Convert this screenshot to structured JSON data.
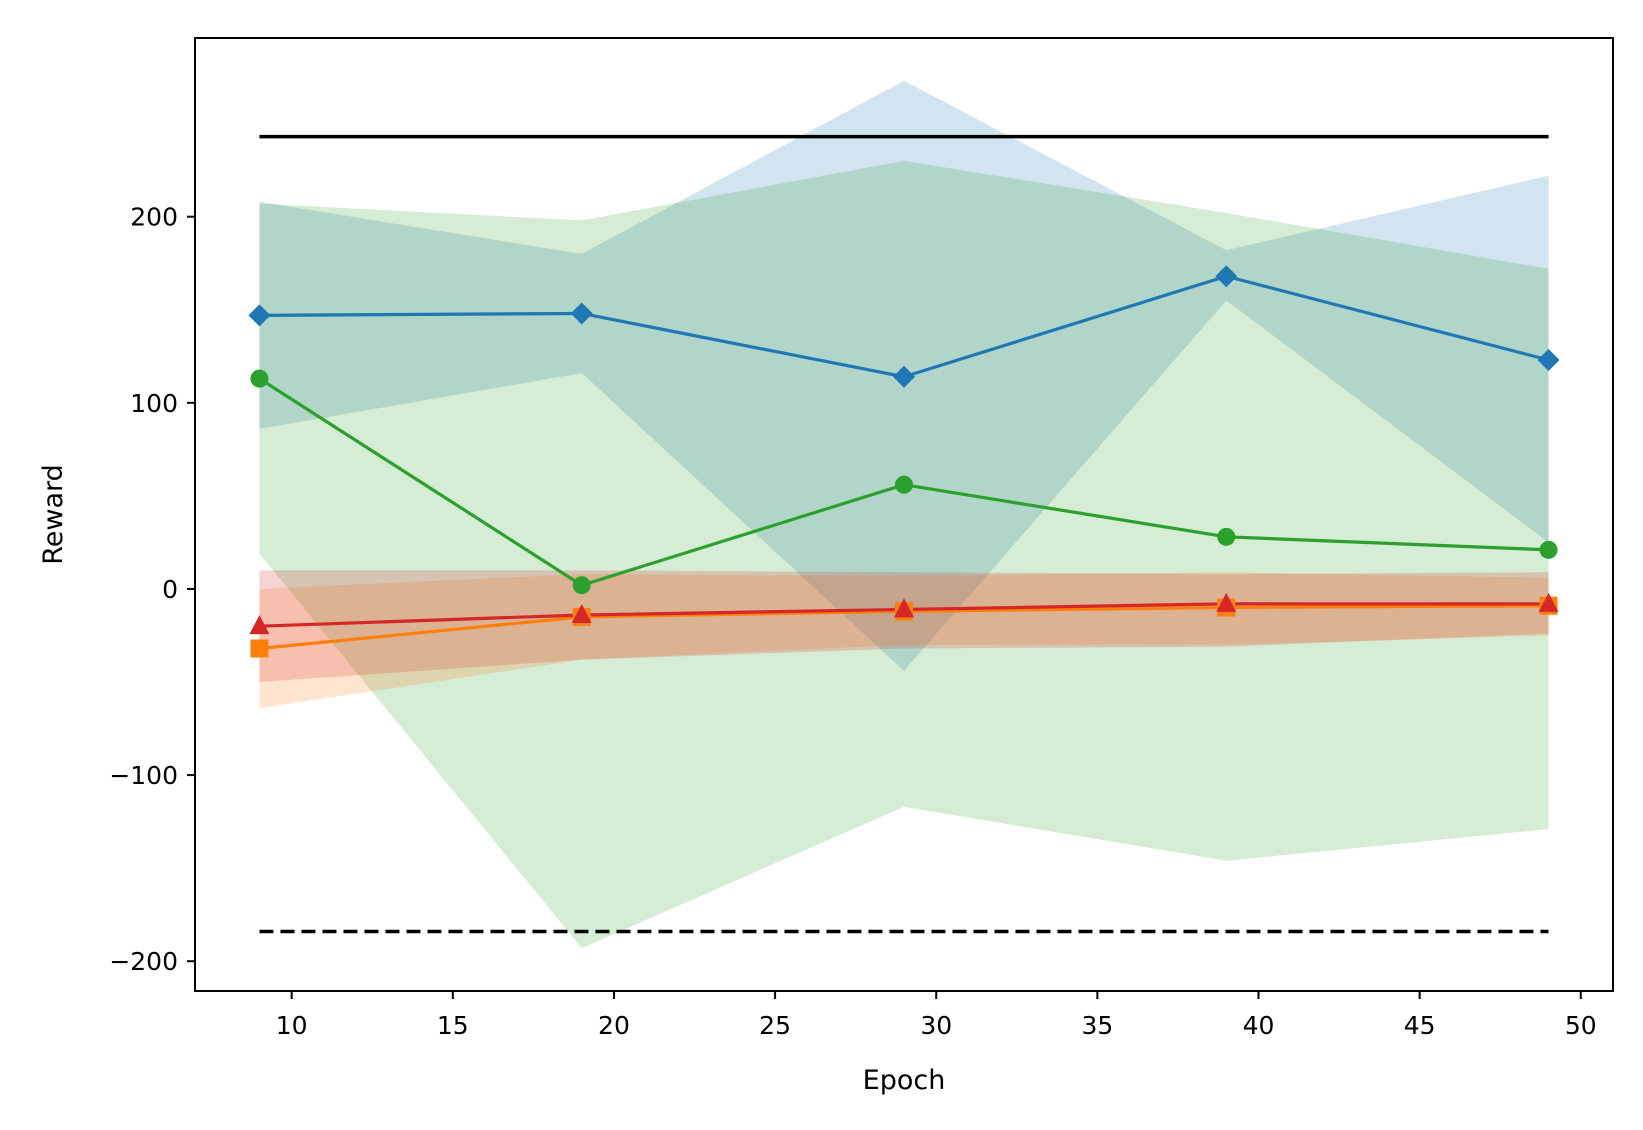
{
  "chart_data": {
    "type": "line",
    "title": "",
    "xlabel": "Epoch",
    "ylabel": "Reward",
    "xlim": [
      7,
      51
    ],
    "ylim": [
      -216,
      296
    ],
    "xticks": [
      10,
      15,
      20,
      25,
      30,
      35,
      40,
      45,
      50
    ],
    "yticks": [
      -200,
      -100,
      0,
      100,
      200
    ],
    "x": [
      9,
      19,
      29,
      39,
      49
    ],
    "grid": false,
    "legend": "none",
    "series": [
      {
        "name": "blue",
        "color": "#1f77b4",
        "marker": "diamond",
        "values": [
          147,
          148,
          114,
          168,
          123
        ],
        "lower": [
          86,
          116,
          -44,
          155,
          25
        ],
        "upper": [
          208,
          180,
          273,
          182,
          222
        ]
      },
      {
        "name": "green",
        "color": "#2ca02c",
        "marker": "circle",
        "values": [
          113,
          2,
          56,
          28,
          21
        ],
        "lower": [
          19,
          -193,
          -117,
          -146,
          -129
        ],
        "upper": [
          207,
          198,
          230,
          202,
          172
        ]
      },
      {
        "name": "orange",
        "color": "#ff7f0e",
        "marker": "square",
        "values": [
          -32,
          -15,
          -12,
          -10,
          -9
        ],
        "lower": [
          -64,
          -38,
          -30,
          -30,
          -25
        ],
        "upper": [
          0,
          8,
          7,
          9,
          6
        ]
      },
      {
        "name": "red",
        "color": "#d62728",
        "marker": "triangle",
        "values": [
          -20,
          -14,
          -11,
          -8,
          -8
        ],
        "lower": [
          -50,
          -38,
          -32,
          -31,
          -24
        ],
        "upper": [
          10,
          10,
          9,
          8,
          9
        ]
      }
    ],
    "reference_lines": [
      {
        "name": "upper-reference",
        "y": 243,
        "style": "solid",
        "color": "#000000"
      },
      {
        "name": "lower-reference",
        "y": -184,
        "style": "dashed",
        "color": "#000000"
      }
    ]
  }
}
